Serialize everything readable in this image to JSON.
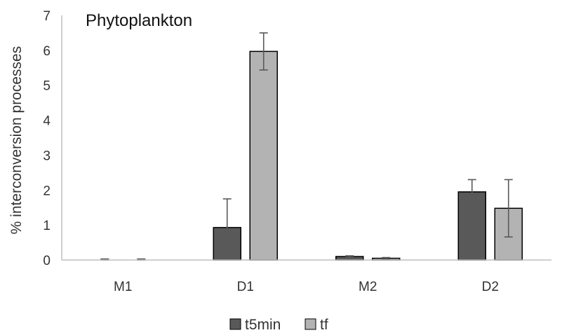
{
  "chart_data": {
    "type": "bar",
    "title": "Phytoplankton",
    "xlabel": "",
    "ylabel": "% interconversion processes",
    "categories": [
      "M1",
      "D1",
      "M2",
      "D2"
    ],
    "ylim": [
      0,
      7
    ],
    "yticks": [
      "0",
      "1",
      "2",
      "3",
      "4",
      "5",
      "6",
      "7"
    ],
    "grid": false,
    "legend_position": "bottom",
    "series": [
      {
        "name": "t5min",
        "color": "#595959",
        "values": [
          0.0,
          0.93,
          0.1,
          1.95
        ],
        "errors": [
          0.03,
          0.82,
          0.02,
          0.35
        ]
      },
      {
        "name": "tf",
        "color": "#b3b3b3",
        "values": [
          0.0,
          5.97,
          0.05,
          1.48
        ],
        "errors": [
          0.03,
          0.53,
          0.02,
          0.82
        ]
      }
    ]
  }
}
